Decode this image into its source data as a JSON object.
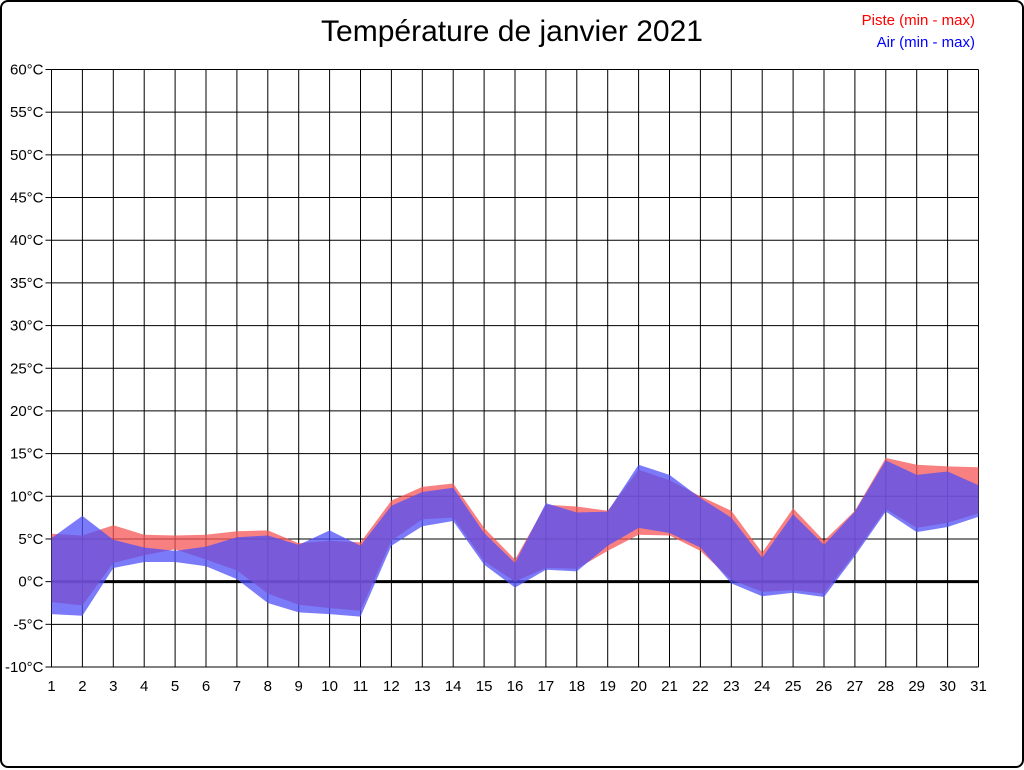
{
  "page": {
    "background": "#FFFFFF",
    "frame_color": "#000000"
  },
  "chart_data": {
    "type": "area",
    "subtype": "min-max-band",
    "title": "Température de janvier 2021",
    "xlabel": "",
    "ylabel": "",
    "xlim": [
      1,
      31
    ],
    "ylim": [
      -10,
      60
    ],
    "ytick_step": 5,
    "ytick_labels": [
      "60°C",
      "55°C",
      "50°C",
      "45°C",
      "40°C",
      "35°C",
      "30°C",
      "25°C",
      "20°C",
      "15°C",
      "10°C",
      "5°C",
      "0°C",
      "-5°C",
      "-10°C"
    ],
    "x": [
      1,
      2,
      3,
      4,
      5,
      6,
      7,
      8,
      9,
      10,
      11,
      12,
      13,
      14,
      15,
      16,
      17,
      18,
      19,
      20,
      21,
      22,
      23,
      24,
      25,
      26,
      27,
      28,
      29,
      30,
      31
    ],
    "grid": true,
    "zero_line": true,
    "zero_line_width": 3,
    "legend_position": "top-right",
    "series": [
      {
        "name": "Piste (min - max)",
        "legend_color": "#FF0000",
        "fill_color": "#F65656",
        "fill_opacity": 0.75,
        "min": [
          -2.4,
          -2.8,
          2.2,
          3.1,
          3.8,
          2.6,
          1.3,
          -1.4,
          -2.7,
          -3.1,
          -3.4,
          4.8,
          7.3,
          7.5,
          2.4,
          0.0,
          1.6,
          1.5,
          3.6,
          5.5,
          5.4,
          3.6,
          0.2,
          -1.2,
          -1.0,
          -1.4,
          3.3,
          8.5,
          6.3,
          6.9,
          8.0
        ],
        "max": [
          5.6,
          5.4,
          6.6,
          5.5,
          5.4,
          5.5,
          5.9,
          6.0,
          4.5,
          4.8,
          4.6,
          9.5,
          11.1,
          11.5,
          6.3,
          2.6,
          9.0,
          8.8,
          8.3,
          13.1,
          11.9,
          10.0,
          8.3,
          3.4,
          8.6,
          4.8,
          8.3,
          14.5,
          13.7,
          13.5,
          13.4
        ]
      },
      {
        "name": "Air (min - max)",
        "legend_color": "#0000FF",
        "fill_color": "#4F4FF8",
        "fill_opacity": 0.75,
        "min": [
          -3.8,
          -4.0,
          1.6,
          2.3,
          2.3,
          1.8,
          0.3,
          -2.5,
          -3.6,
          -3.8,
          -4.1,
          4.2,
          6.5,
          7.1,
          2.0,
          -0.7,
          1.4,
          1.2,
          4.2,
          6.3,
          5.7,
          4.0,
          -0.2,
          -1.7,
          -1.3,
          -1.8,
          3.0,
          8.2,
          5.8,
          6.4,
          7.6
        ],
        "max": [
          5.1,
          7.7,
          4.9,
          4.0,
          3.6,
          4.1,
          5.2,
          5.4,
          4.3,
          6.0,
          4.2,
          8.9,
          10.5,
          11.0,
          5.7,
          2.2,
          9.2,
          8.1,
          8.2,
          13.7,
          12.5,
          9.8,
          7.5,
          2.8,
          7.9,
          4.3,
          8.2,
          14.2,
          12.5,
          12.9,
          11.3
        ]
      }
    ]
  }
}
